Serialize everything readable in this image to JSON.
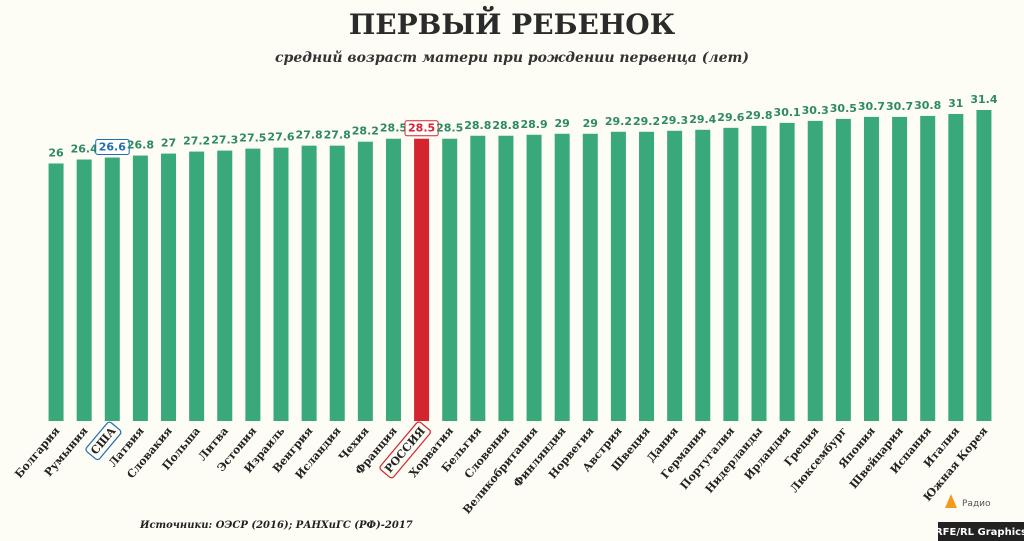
{
  "chart_data": {
    "type": "bar",
    "title": "ПЕРВЫЙ РЕБЕНОК",
    "subtitle": "средний возраст матери при рождении первенца (лет)",
    "categories": [
      "Болгария",
      "Румыния",
      "США",
      "Латвия",
      "Словакия",
      "Польша",
      "Литва",
      "Эстония",
      "Израиль",
      "Венгрия",
      "Исландия",
      "Чехия",
      "Франция",
      "РОССИЯ",
      "Хорватия",
      "Бельгия",
      "Словения",
      "Великобритания",
      "Финляндия",
      "Норвегия",
      "Австрия",
      "Швеция",
      "Дания",
      "Германия",
      "Португалия",
      "Нидерланды",
      "Ирландия",
      "Греция",
      "Люксембург",
      "Япония",
      "Швейцария",
      "Испания",
      "Италия",
      "Южная Корея"
    ],
    "values": [
      26,
      26.4,
      26.6,
      26.8,
      27,
      27.2,
      27.3,
      27.5,
      27.6,
      27.8,
      27.8,
      28.2,
      28.5,
      28.5,
      28.5,
      28.8,
      28.8,
      28.9,
      29,
      29,
      29.2,
      29.2,
      29.3,
      29.4,
      29.6,
      29.8,
      30.1,
      30.3,
      30.5,
      30.7,
      30.7,
      30.8,
      31,
      31.4
    ],
    "color": "#3aa97a",
    "colors": [
      "#3aa97a",
      "#3aa97a",
      "#3aa97a",
      "#3aa97a",
      "#3aa97a",
      "#3aa97a",
      "#3aa97a",
      "#3aa97a",
      "#3aa97a",
      "#3aa97a",
      "#3aa97a",
      "#3aa97a",
      "#3aa97a",
      "#d4252f",
      "#3aa97a",
      "#3aa97a",
      "#3aa97a",
      "#3aa97a",
      "#3aa97a",
      "#3aa97a",
      "#3aa97a",
      "#3aa97a",
      "#3aa97a",
      "#3aa97a",
      "#3aa97a",
      "#3aa97a",
      "#3aa97a",
      "#3aa97a",
      "#3aa97a",
      "#3aa97a",
      "#3aa97a",
      "#3aa97a",
      "#3aa97a",
      "#3aa97a"
    ],
    "label_color": "#2e8a60",
    "label_colors": [
      "#2e8a60",
      "#2e8a60",
      "#1f6db5",
      "#2e8a60",
      "#2e8a60",
      "#2e8a60",
      "#2e8a60",
      "#2e8a60",
      "#2e8a60",
      "#2e8a60",
      "#2e8a60",
      "#2e8a60",
      "#2e8a60",
      "#d4252f",
      "#2e8a60",
      "#2e8a60",
      "#2e8a60",
      "#2e8a60",
      "#2e8a60",
      "#2e8a60",
      "#2e8a60",
      "#2e8a60",
      "#2e8a60",
      "#2e8a60",
      "#2e8a60",
      "#2e8a60",
      "#2e8a60",
      "#2e8a60",
      "#2e8a60",
      "#2e8a60",
      "#2e8a60",
      "#2e8a60",
      "#2e8a60",
      "#2e8a60"
    ]
  },
  "source": "Источники: ОЭСР (2016); РАНХиГС (РФ)-2017",
  "logo": "Радио",
  "credit": "RFE/RL Graphics"
}
